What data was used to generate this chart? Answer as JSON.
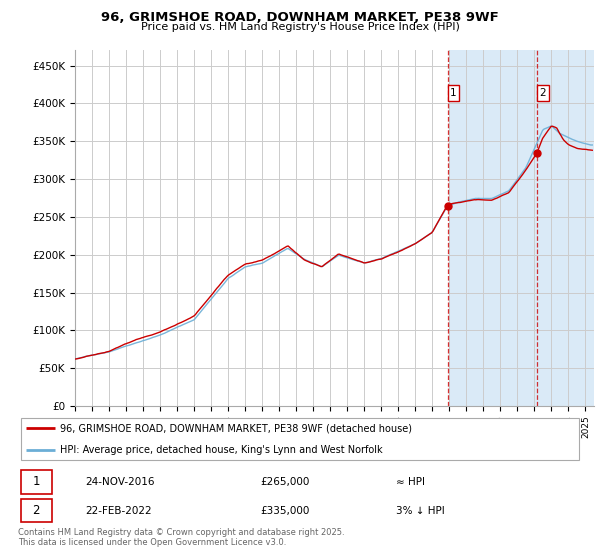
{
  "title": "96, GRIMSHOE ROAD, DOWNHAM MARKET, PE38 9WF",
  "subtitle": "Price paid vs. HM Land Registry's House Price Index (HPI)",
  "ylabel_ticks": [
    "£0",
    "£50K",
    "£100K",
    "£150K",
    "£200K",
    "£250K",
    "£300K",
    "£350K",
    "£400K",
    "£450K"
  ],
  "ytick_values": [
    0,
    50000,
    100000,
    150000,
    200000,
    250000,
    300000,
    350000,
    400000,
    450000
  ],
  "ylim": [
    0,
    470000
  ],
  "legend_line1": "96, GRIMSHOE ROAD, DOWNHAM MARKET, PE38 9WF (detached house)",
  "legend_line2": "HPI: Average price, detached house, King's Lynn and West Norfolk",
  "annotation1_num": "1",
  "annotation1_date": "24-NOV-2016",
  "annotation1_price": "£265,000",
  "annotation1_hpi": "≈ HPI",
  "annotation2_num": "2",
  "annotation2_date": "22-FEB-2022",
  "annotation2_price": "£335,000",
  "annotation2_hpi": "3% ↓ HPI",
  "footer": "Contains HM Land Registry data © Crown copyright and database right 2025.\nThis data is licensed under the Open Government Licence v3.0.",
  "hpi_color": "#6baed6",
  "price_color": "#cc0000",
  "highlight_bg_color": "#daeaf7",
  "grid_color": "#cccccc",
  "sale1_x": 2016.9,
  "sale1_y": 265000,
  "sale2_x": 2022.15,
  "sale2_y": 335000,
  "xmin": 1995,
  "xmax": 2025.5,
  "highlight_x1": 2017.0,
  "highlight_x2": 2025.5
}
